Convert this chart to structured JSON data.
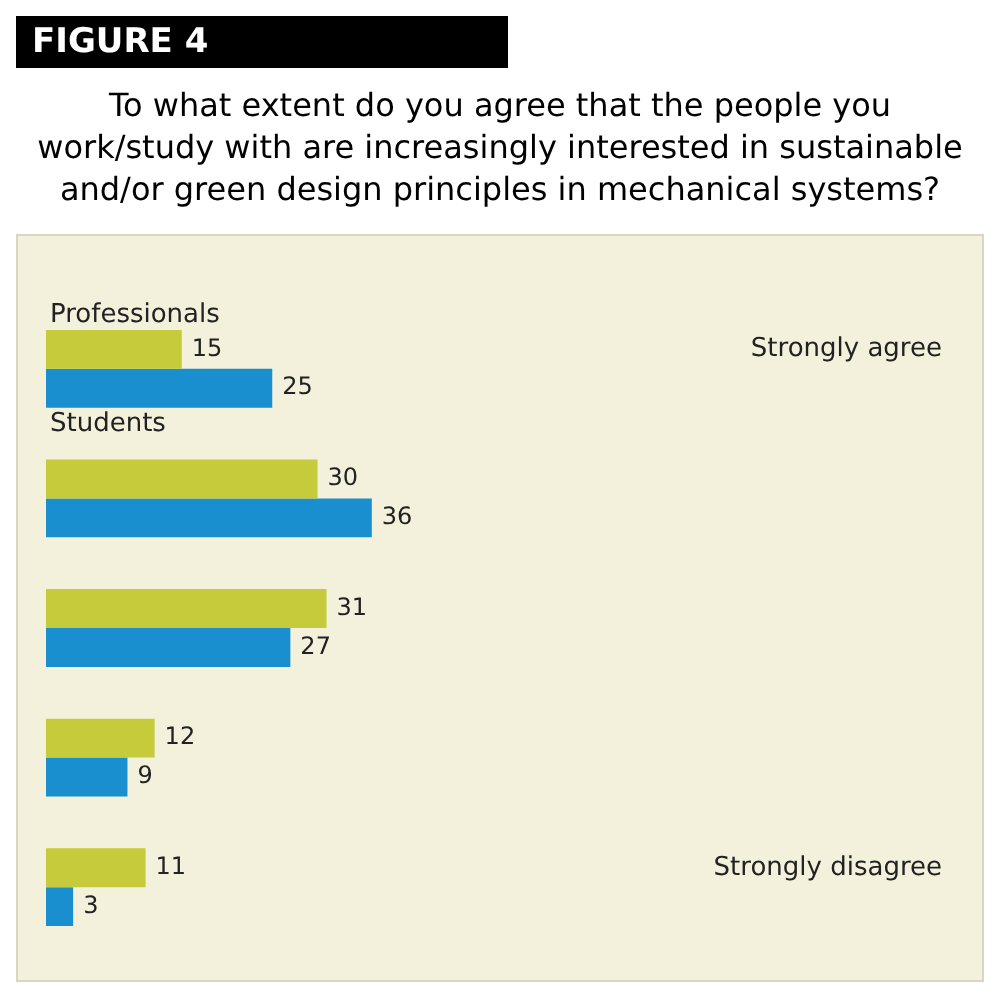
{
  "chart_data": {
    "type": "bar",
    "title": "FIGURE 4",
    "subtitle": "To what extent do you agree that the people you work/study with are increasingly interested in sustainable and/or green design principles in mechanical systems?",
    "orientation": "horizontal",
    "categories": [
      "Strongly agree",
      null,
      null,
      null,
      "Strongly disagree"
    ],
    "series": [
      {
        "name": "Professionals",
        "color": "#c5cb3a",
        "values": [
          15,
          30,
          31,
          12,
          11
        ]
      },
      {
        "name": "Students",
        "color": "#1a8fd0",
        "values": [
          25,
          36,
          27,
          9,
          3
        ]
      }
    ],
    "data_labels": true,
    "legend": false
  }
}
